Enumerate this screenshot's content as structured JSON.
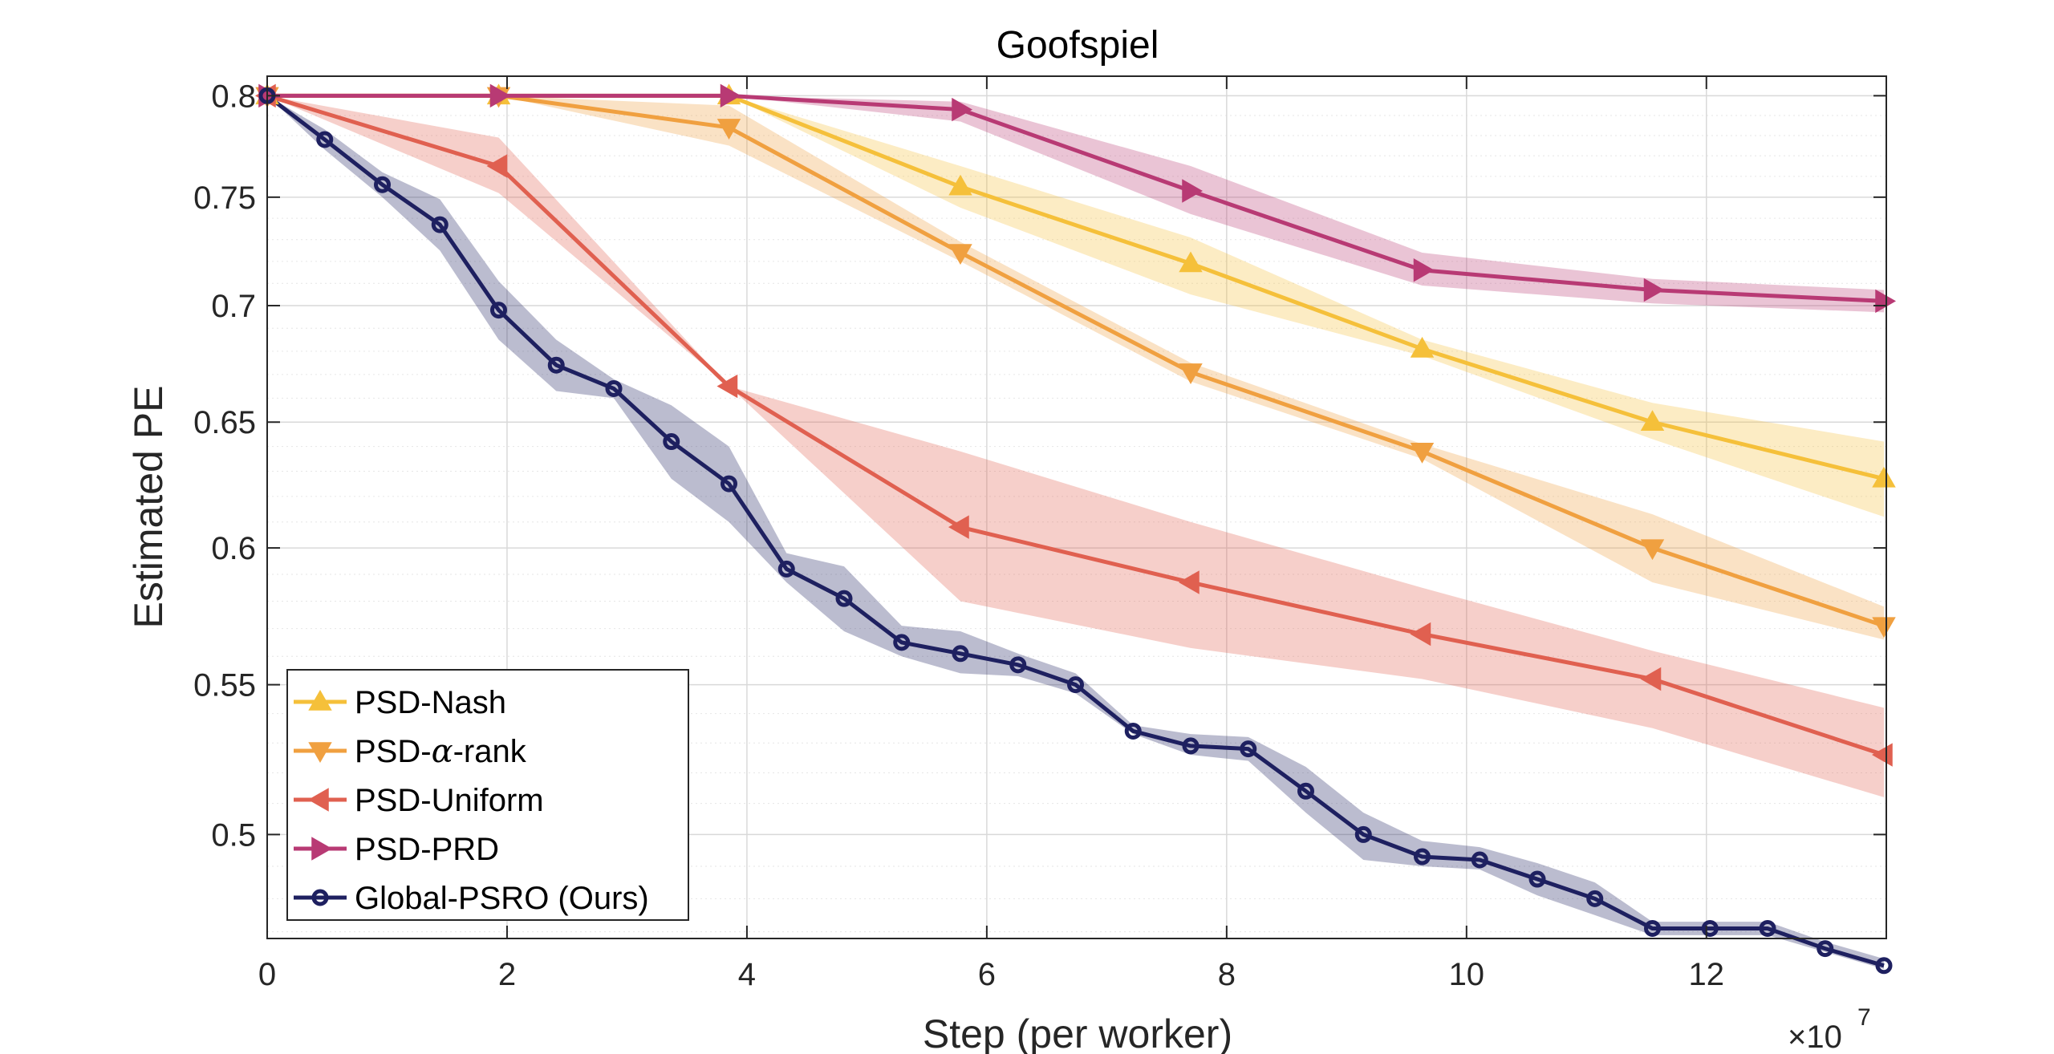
{
  "chart_data": {
    "type": "line",
    "title": "Goofspiel",
    "xlabel": "Step (per worker)",
    "ylabel": "Estimated PE",
    "x_exponent": {
      "base": "×10",
      "power": "7"
    },
    "xlim": [
      0,
      13.5
    ],
    "ylim": [
      0.468,
      0.81
    ],
    "y_scale": "log",
    "grid": true,
    "legend_position": "bottom-left",
    "x_ticks": [
      0,
      2,
      4,
      6,
      8,
      10,
      12
    ],
    "x_tick_labels": [
      "0",
      "2",
      "4",
      "6",
      "8",
      "10",
      "12"
    ],
    "y_ticks": [
      0.5,
      0.55,
      0.6,
      0.65,
      0.7,
      0.75,
      0.8
    ],
    "y_tick_labels": [
      "0.5",
      "0.55",
      "0.6",
      "0.65",
      "0.7",
      "0.75",
      "0.8"
    ],
    "series": [
      {
        "name": "PSD-Nash",
        "color": "#f5c03a",
        "marker": "triangle-up",
        "x": [
          0,
          1.93,
          3.85,
          5.78,
          7.7,
          9.63,
          11.55,
          13.48
        ],
        "y": [
          0.8,
          0.8,
          0.8,
          0.755,
          0.719,
          0.681,
          0.65,
          0.627
        ],
        "lower": [
          0.8,
          0.8,
          0.8,
          0.745,
          0.705,
          0.678,
          0.643,
          0.612
        ],
        "upper": [
          0.8,
          0.8,
          0.8,
          0.765,
          0.731,
          0.685,
          0.658,
          0.642
        ]
      },
      {
        "name": "PSD-α-rank",
        "label_prefix": "PSD-",
        "label_greek": "α",
        "label_suffix": "-rank",
        "color": "#f0a040",
        "marker": "triangle-down",
        "x": [
          0,
          1.93,
          3.85,
          5.78,
          7.7,
          9.63,
          11.55,
          13.48
        ],
        "y": [
          0.8,
          0.8,
          0.784,
          0.724,
          0.671,
          0.638,
          0.6,
          0.571
        ],
        "lower": [
          0.8,
          0.8,
          0.775,
          0.72,
          0.667,
          0.635,
          0.587,
          0.566
        ],
        "upper": [
          0.8,
          0.8,
          0.795,
          0.729,
          0.675,
          0.641,
          0.613,
          0.578
        ]
      },
      {
        "name": "PSD-Uniform",
        "color": "#e06050",
        "marker": "triangle-left",
        "x": [
          0,
          1.93,
          3.85,
          5.78,
          7.7,
          9.63,
          11.55,
          13.48
        ],
        "y": [
          0.8,
          0.765,
          0.665,
          0.608,
          0.587,
          0.568,
          0.552,
          0.526
        ],
        "lower": [
          0.8,
          0.752,
          0.665,
          0.58,
          0.563,
          0.552,
          0.535,
          0.512
        ],
        "upper": [
          0.8,
          0.779,
          0.665,
          0.638,
          0.61,
          0.585,
          0.562,
          0.542
        ]
      },
      {
        "name": "PSD-PRD",
        "color": "#b83a74",
        "marker": "triangle-right",
        "x": [
          0,
          1.93,
          3.85,
          5.78,
          7.7,
          9.63,
          11.55,
          13.48
        ],
        "y": [
          0.8,
          0.8,
          0.8,
          0.793,
          0.753,
          0.716,
          0.707,
          0.702
        ],
        "lower": [
          0.8,
          0.8,
          0.8,
          0.787,
          0.742,
          0.709,
          0.701,
          0.697
        ],
        "upper": [
          0.8,
          0.8,
          0.8,
          0.797,
          0.765,
          0.724,
          0.712,
          0.707
        ]
      },
      {
        "name": "Global-PSRO (Ours)",
        "color": "#1e2060",
        "marker": "circle",
        "x": [
          0,
          0.48,
          0.96,
          1.44,
          1.93,
          2.41,
          2.89,
          3.37,
          3.85,
          4.33,
          4.81,
          5.29,
          5.78,
          6.26,
          6.74,
          7.22,
          7.7,
          8.18,
          8.66,
          9.14,
          9.63,
          10.11,
          10.59,
          11.07,
          11.55,
          12.03,
          12.51,
          12.99,
          13.48
        ],
        "y": [
          0.8,
          0.778,
          0.756,
          0.737,
          0.698,
          0.674,
          0.664,
          0.642,
          0.625,
          0.592,
          0.581,
          0.565,
          0.561,
          0.557,
          0.55,
          0.534,
          0.529,
          0.528,
          0.514,
          0.5,
          0.493,
          0.492,
          0.486,
          0.48,
          0.471,
          0.471,
          0.471,
          0.465,
          0.46
        ],
        "lower": [
          0.8,
          0.773,
          0.75,
          0.725,
          0.685,
          0.663,
          0.66,
          0.627,
          0.61,
          0.587,
          0.569,
          0.56,
          0.554,
          0.553,
          0.547,
          0.533,
          0.526,
          0.524,
          0.507,
          0.492,
          0.49,
          0.489,
          0.481,
          0.475,
          0.469,
          0.469,
          0.469,
          0.464,
          0.459
        ],
        "upper": [
          0.8,
          0.783,
          0.762,
          0.749,
          0.711,
          0.685,
          0.668,
          0.657,
          0.64,
          0.598,
          0.593,
          0.571,
          0.569,
          0.561,
          0.554,
          0.536,
          0.533,
          0.532,
          0.522,
          0.507,
          0.498,
          0.496,
          0.491,
          0.485,
          0.473,
          0.473,
          0.473,
          0.467,
          0.462
        ]
      }
    ]
  }
}
